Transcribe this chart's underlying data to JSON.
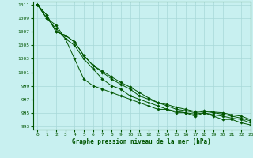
{
  "xlabel": "Graphe pression niveau de la mer (hPa)",
  "background_color": "#c8f0f0",
  "grid_color": "#a8d8d8",
  "line_color": "#005500",
  "ylim": [
    992.5,
    1011.5
  ],
  "xlim": [
    -0.5,
    23
  ],
  "yticks": [
    993,
    995,
    997,
    999,
    1001,
    1003,
    1005,
    1007,
    1009,
    1011
  ],
  "xticks": [
    0,
    1,
    2,
    3,
    4,
    5,
    6,
    7,
    8,
    9,
    10,
    11,
    12,
    13,
    14,
    15,
    16,
    17,
    18,
    19,
    20,
    21,
    22,
    23
  ],
  "series": [
    [
      1011,
      1009,
      1008,
      1006,
      1003,
      1000,
      999,
      998.5,
      998,
      997.5,
      997,
      996.5,
      996,
      995.5,
      995.5,
      995,
      995,
      994.5,
      995,
      994.5,
      994,
      994,
      993.5,
      993.2
    ],
    [
      1011,
      1009,
      1007.5,
      1006,
      1005,
      1003,
      1001.5,
      1000,
      999,
      998.5,
      997.5,
      997,
      996.5,
      996,
      995.5,
      995.2,
      995,
      994.8,
      995,
      994.7,
      994.5,
      994.2,
      994,
      993.5
    ],
    [
      1011,
      1009.5,
      1007,
      1006.5,
      1005.5,
      1003.5,
      1002,
      1001,
      1000,
      999.2,
      998.5,
      997.5,
      997,
      996.5,
      996,
      995.5,
      995.3,
      995,
      995.2,
      995,
      994.8,
      994.5,
      994.2,
      993.8
    ],
    [
      1011,
      1009.5,
      1007,
      1006.5,
      1005.5,
      1003.5,
      1002,
      1001.2,
      1000.3,
      999.5,
      998.8,
      998,
      997.2,
      996.5,
      996.2,
      995.8,
      995.5,
      995.2,
      995.3,
      995.1,
      995,
      994.7,
      994.5,
      994
    ]
  ]
}
